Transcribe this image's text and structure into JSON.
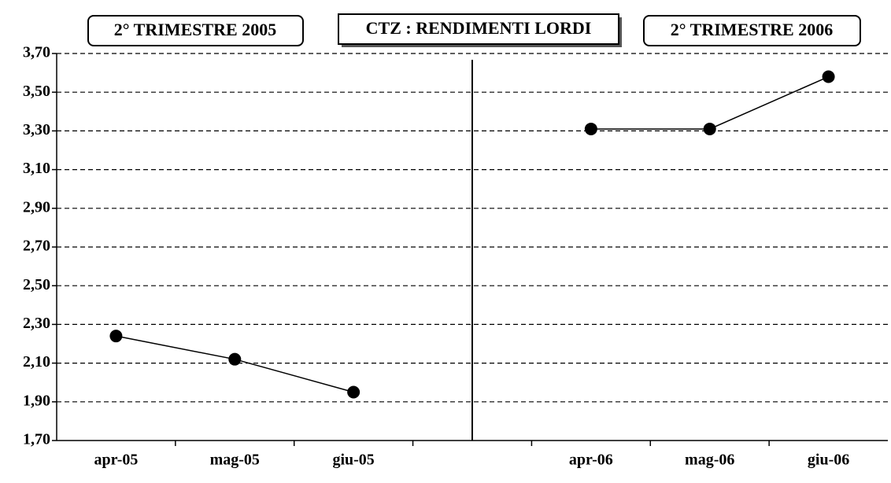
{
  "chart_data": {
    "type": "line",
    "title": "CTZ : RENDIMENTI LORDI",
    "annotations": [
      "2° TRIMESTRE 2005",
      "2° TRIMESTRE 2006"
    ],
    "categories": [
      "apr-05",
      "mag-05",
      "giu-05",
      null,
      "apr-06",
      "mag-06",
      "giu-06"
    ],
    "series": [
      {
        "color": "#000000",
        "values": [
          2.24,
          2.12,
          1.95,
          null,
          3.31,
          3.31,
          3.58
        ]
      }
    ],
    "ylim": [
      1.7,
      3.7
    ],
    "yticks": [
      {
        "value": 1.7,
        "label": "1,70"
      },
      {
        "value": 1.9,
        "label": "1,90"
      },
      {
        "value": 2.1,
        "label": "2,10"
      },
      {
        "value": 2.3,
        "label": "2,30"
      },
      {
        "value": 2.5,
        "label": "2,50"
      },
      {
        "value": 2.7,
        "label": "2,70"
      },
      {
        "value": 2.9,
        "label": "2,90"
      },
      {
        "value": 3.1,
        "label": "3,10"
      },
      {
        "value": 3.3,
        "label": "3,30"
      },
      {
        "value": 3.5,
        "label": "3,50"
      },
      {
        "value": 3.7,
        "label": "3,70"
      }
    ],
    "grid": true
  }
}
